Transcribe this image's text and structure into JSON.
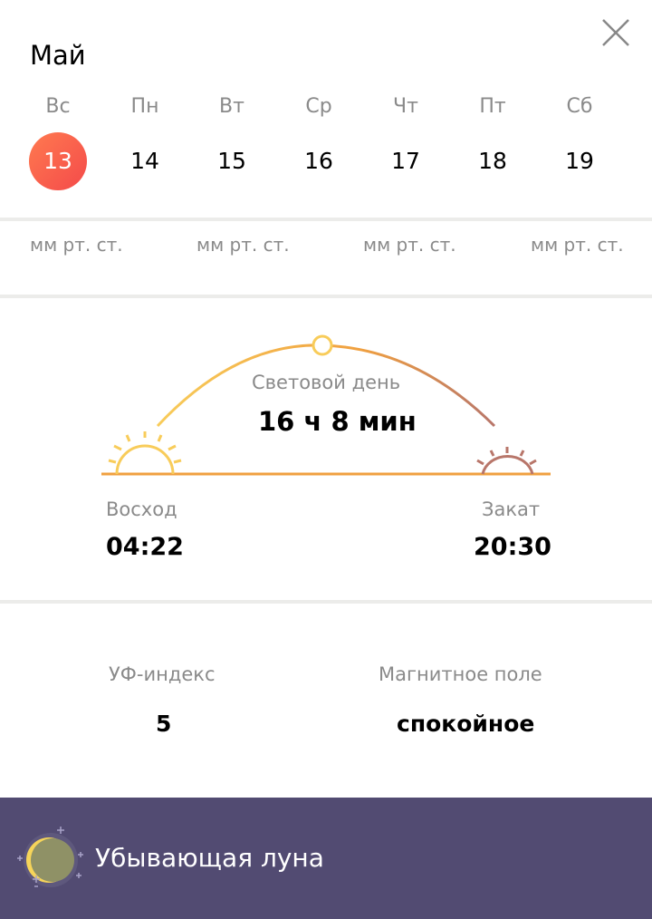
{
  "header": {
    "month": "Май",
    "close_icon": "close-icon",
    "days": [
      {
        "name": "Вс",
        "num": "13",
        "selected": true
      },
      {
        "name": "Пн",
        "num": "14"
      },
      {
        "name": "Вт",
        "num": "15"
      },
      {
        "name": "Ср",
        "num": "16"
      },
      {
        "name": "Чт",
        "num": "17"
      },
      {
        "name": "Пт",
        "num": "18"
      },
      {
        "name": "Сб",
        "num": "19"
      }
    ]
  },
  "pressure": {
    "unit": "мм рт. ст."
  },
  "daylight": {
    "label": "Световой день",
    "duration": "16 ч 8 мин",
    "sunrise_label": "Восход",
    "sunrise": "04:22",
    "sunset_label": "Закат",
    "sunset": "20:30"
  },
  "indices": {
    "uv_label": "УФ-индекс",
    "uv": "5",
    "magnetic_label": "Магнитное поле",
    "magnetic": "спокойное"
  },
  "moon": {
    "phase": "Убывающая луна",
    "icon": "waning-moon-icon"
  },
  "colors": {
    "selected_day": "#f75a4a",
    "banner": "#524b72",
    "sun_arc": "#f5a742"
  }
}
